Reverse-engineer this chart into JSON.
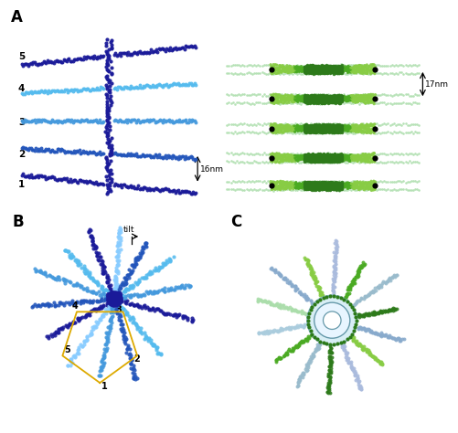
{
  "panel_labels": [
    "A",
    "B",
    "C"
  ],
  "blue_dark": "#1a1a99",
  "blue_mid": "#2255bb",
  "blue_light": "#4499dd",
  "blue_bright": "#55bbee",
  "blue_pale": "#88ccff",
  "green_dark": "#2d7a1a",
  "green_mid": "#4aaa22",
  "green_light": "#88cc44",
  "green_pale": "#aaddaa",
  "black": "#000000",
  "bg_color": "#ffffff",
  "nm16_label": "16nm",
  "nm17_label": "17nm",
  "tilt_label": "tilt",
  "gold": "#ddaa00"
}
